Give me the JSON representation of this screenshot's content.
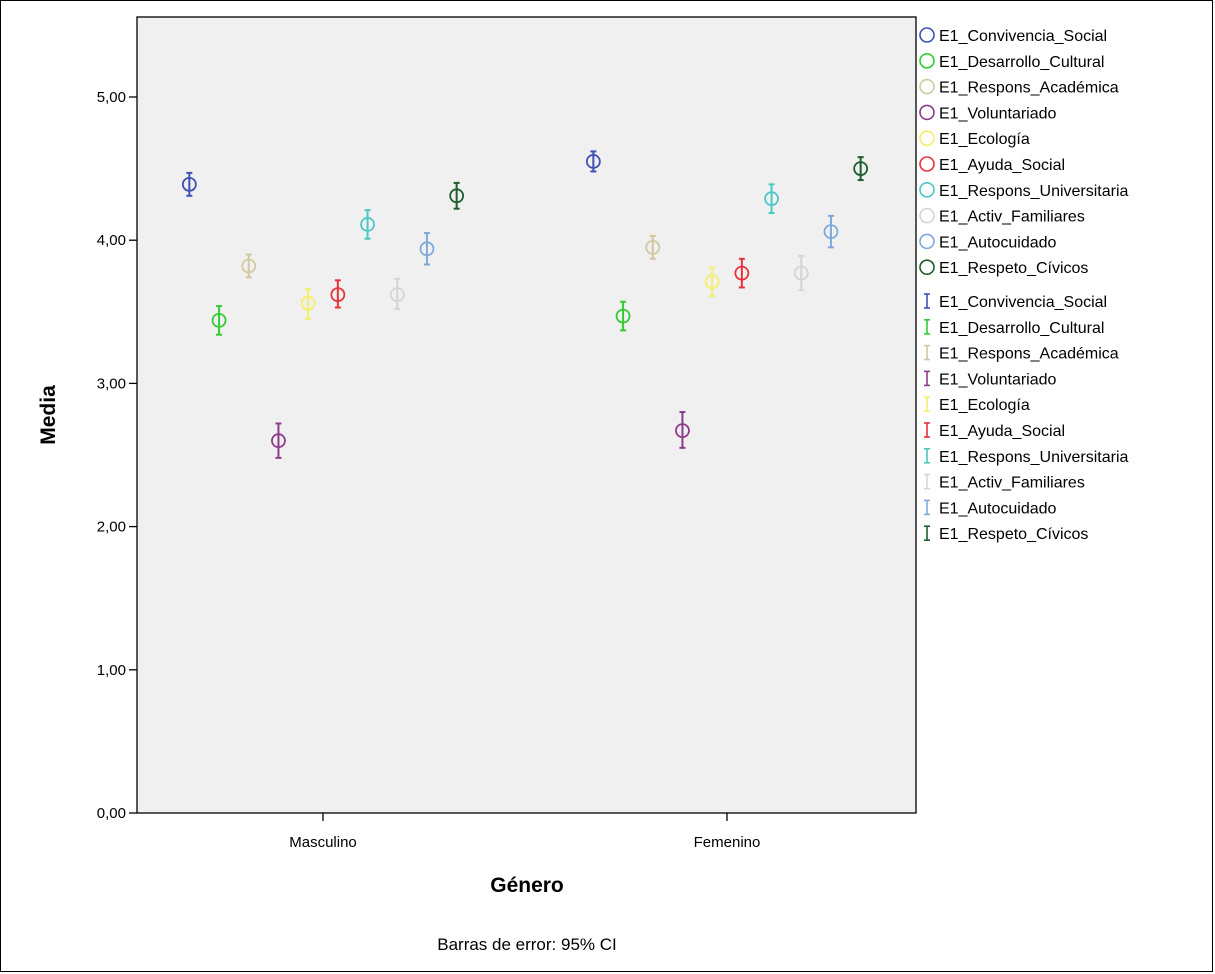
{
  "chart_data": {
    "type": "scatter",
    "title": "",
    "xlabel": "Género",
    "ylabel": "Media",
    "note": "Barras de error: 95% CI",
    "categories": [
      "Masculino",
      "Femenino"
    ],
    "ylim": [
      0,
      5.6
    ],
    "y_ticks": [
      {
        "value": 0,
        "label": "0,00"
      },
      {
        "value": 1,
        "label": "1,00"
      },
      {
        "value": 2,
        "label": "2,00"
      },
      {
        "value": 3,
        "label": "3,00"
      },
      {
        "value": 4,
        "label": "4,00"
      },
      {
        "value": 5,
        "label": "5,00"
      }
    ],
    "grid": false,
    "legend_position": "right",
    "series": [
      {
        "name": "E1_Convivencia_Social",
        "color": "#3f51b5",
        "mean": [
          4.39,
          4.55
        ],
        "ci_low": [
          4.31,
          4.48
        ],
        "ci_high": [
          4.47,
          4.62
        ]
      },
      {
        "name": "E1_Desarrollo_Cultural",
        "color": "#33cc33",
        "mean": [
          3.44,
          3.47
        ],
        "ci_low": [
          3.34,
          3.37
        ],
        "ci_high": [
          3.54,
          3.57
        ]
      },
      {
        "name": "E1_Respons_Académica",
        "color": "#d2c9a0",
        "mean": [
          3.82,
          3.95
        ],
        "ci_low": [
          3.74,
          3.87
        ],
        "ci_high": [
          3.9,
          4.03
        ]
      },
      {
        "name": "E1_Voluntariado",
        "color": "#8e3b8e",
        "mean": [
          2.6,
          2.67
        ],
        "ci_low": [
          2.48,
          2.55
        ],
        "ci_high": [
          2.72,
          2.8
        ]
      },
      {
        "name": "E1_Ecología",
        "color": "#f5ef6a",
        "mean": [
          3.56,
          3.71
        ],
        "ci_low": [
          3.45,
          3.61
        ],
        "ci_high": [
          3.66,
          3.81
        ]
      },
      {
        "name": "E1_Ayuda_Social",
        "color": "#e8313a",
        "mean": [
          3.62,
          3.77
        ],
        "ci_low": [
          3.53,
          3.67
        ],
        "ci_high": [
          3.72,
          3.87
        ]
      },
      {
        "name": "E1_Respons_Universitaria",
        "color": "#4cc7c4",
        "mean": [
          4.11,
          4.29
        ],
        "ci_low": [
          4.01,
          4.19
        ],
        "ci_high": [
          4.21,
          4.39
        ]
      },
      {
        "name": "E1_Activ_Familiares",
        "color": "#d5d5d5",
        "mean": [
          3.62,
          3.77
        ],
        "ci_low": [
          3.52,
          3.65
        ],
        "ci_high": [
          3.73,
          3.89
        ]
      },
      {
        "name": "E1_Autocuidado",
        "color": "#7fa9dc",
        "mean": [
          3.94,
          4.06
        ],
        "ci_low": [
          3.83,
          3.95
        ],
        "ci_high": [
          4.05,
          4.17
        ]
      },
      {
        "name": "E1_Respeto_Cívicos",
        "color": "#1d5e2e",
        "mean": [
          4.31,
          4.5
        ],
        "ci_low": [
          4.22,
          4.42
        ],
        "ci_high": [
          4.4,
          4.58
        ]
      }
    ]
  }
}
